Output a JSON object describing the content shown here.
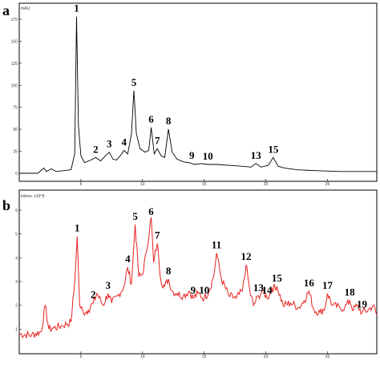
{
  "chart_data": [
    {
      "type": "line",
      "panel": "a",
      "color": "#000000",
      "y_unit": "mAU",
      "xlim": [
        0,
        29
      ],
      "ylim": [
        0,
        175
      ],
      "xticks": [
        "5",
        "10",
        "15",
        "20",
        "25"
      ],
      "yticks": [
        "0",
        "25",
        "50",
        "75",
        "100",
        "125",
        "150",
        "175"
      ],
      "series": [
        {
          "x": [
            0,
            1.5,
            2.0,
            2.2,
            2.6,
            3.0,
            3.6,
            4.2,
            4.5,
            4.65,
            4.8,
            5.0,
            5.3,
            5.8,
            6.2,
            6.6,
            7.0,
            7.3,
            7.6,
            7.9,
            8.2,
            8.5,
            8.8,
            9.1,
            9.3,
            9.5,
            9.8,
            10.2,
            10.5,
            10.7,
            10.95,
            11.2,
            11.5,
            11.8,
            12.1,
            12.4,
            12.8,
            13.3,
            13.8,
            14.2,
            14.8,
            15.3,
            16.0,
            17.0,
            18.0,
            18.8,
            19.2,
            19.6,
            20.2,
            20.6,
            21.0,
            21.5,
            22.5,
            24.0,
            26.0,
            29.0
          ],
          "y": [
            0,
            0,
            6,
            2,
            5,
            2,
            3,
            4,
            22,
            178,
            55,
            20,
            12,
            15,
            18,
            14,
            20,
            24,
            16,
            15,
            20,
            26,
            22,
            45,
            94,
            45,
            28,
            24,
            26,
            52,
            22,
            28,
            20,
            18,
            50,
            24,
            16,
            13,
            12,
            10,
            11,
            10,
            10,
            9,
            8,
            7,
            11,
            7,
            9,
            18,
            8,
            6,
            4,
            3,
            2,
            2
          ]
        }
      ],
      "peak_labels": [
        {
          "label": "1",
          "x": 4.65,
          "y": 178
        },
        {
          "label": "2",
          "x": 6.2,
          "y": 18
        },
        {
          "label": "3",
          "x": 7.3,
          "y": 24
        },
        {
          "label": "4",
          "x": 8.5,
          "y": 26
        },
        {
          "label": "5",
          "x": 9.3,
          "y": 94
        },
        {
          "label": "6",
          "x": 10.7,
          "y": 52
        },
        {
          "label": "7",
          "x": 11.2,
          "y": 28
        },
        {
          "label": "8",
          "x": 12.1,
          "y": 50
        },
        {
          "label": "9",
          "x": 14.0,
          "y": 11
        },
        {
          "label": "10",
          "x": 15.3,
          "y": 10
        },
        {
          "label": "13",
          "x": 19.2,
          "y": 11
        },
        {
          "label": "15",
          "x": 20.6,
          "y": 18
        }
      ]
    },
    {
      "type": "line",
      "panel": "b",
      "color": "#e8231f",
      "y_unit": "Intens. x10^6",
      "xlim": [
        0,
        29
      ],
      "ylim": [
        0,
        6
      ],
      "xticks": [
        "5",
        "10",
        "15",
        "20",
        "25",
        "30"
      ],
      "yticks": [
        "1",
        "2",
        "3",
        "4",
        "5",
        "6"
      ],
      "series": [
        {
          "x": [
            0,
            1.0,
            1.8,
            2.1,
            2.4,
            2.8,
            3.5,
            4.2,
            4.5,
            4.7,
            4.9,
            5.2,
            5.6,
            6.0,
            6.3,
            6.8,
            7.2,
            7.5,
            8.0,
            8.5,
            8.8,
            9.1,
            9.4,
            9.7,
            10.0,
            10.3,
            10.7,
            10.9,
            11.2,
            11.5,
            11.8,
            12.1,
            12.4,
            12.8,
            13.3,
            13.8,
            14.1,
            14.5,
            15.0,
            15.4,
            15.8,
            16.0,
            16.4,
            17.0,
            17.6,
            18.1,
            18.4,
            18.7,
            19.0,
            19.4,
            19.8,
            20.1,
            20.5,
            20.9,
            21.4,
            22.0,
            22.7,
            23.1,
            23.5,
            23.9,
            24.4,
            24.8,
            25.0,
            25.4,
            26.0,
            26.4,
            26.8,
            27.1,
            27.4,
            27.8,
            28.3,
            28.7,
            29.0
          ],
          "y": [
            0.8,
            0.75,
            0.9,
            2.0,
            1.0,
            1.05,
            1.15,
            1.3,
            3.0,
            4.9,
            2.0,
            1.7,
            1.8,
            2.1,
            2.5,
            2.0,
            2.5,
            2.1,
            2.4,
            2.8,
            3.6,
            2.9,
            5.4,
            3.2,
            3.3,
            4.2,
            5.7,
            3.8,
            4.6,
            3.0,
            2.8,
            3.1,
            2.6,
            2.5,
            2.4,
            2.6,
            2.3,
            2.5,
            2.3,
            2.6,
            3.3,
            4.2,
            3.1,
            2.4,
            2.3,
            2.6,
            3.7,
            2.6,
            2.0,
            2.4,
            2.6,
            2.3,
            2.7,
            2.8,
            2.0,
            2.1,
            1.9,
            2.2,
            2.6,
            1.8,
            1.7,
            1.9,
            2.5,
            2.0,
            1.9,
            1.9,
            2.2,
            1.8,
            2.0,
            1.7,
            1.8,
            2.0,
            1.6
          ]
        }
      ],
      "peak_labels": [
        {
          "label": "1",
          "x": 4.7,
          "y": 4.9
        },
        {
          "label": "2",
          "x": 6.0,
          "y": 2.1
        },
        {
          "label": "3",
          "x": 7.2,
          "y": 2.5
        },
        {
          "label": "4",
          "x": 8.8,
          "y": 3.6
        },
        {
          "label": "5",
          "x": 9.4,
          "y": 5.4
        },
        {
          "label": "6",
          "x": 10.7,
          "y": 5.7
        },
        {
          "label": "7",
          "x": 11.2,
          "y": 4.6
        },
        {
          "label": "8",
          "x": 12.1,
          "y": 3.1
        },
        {
          "label": "9",
          "x": 14.1,
          "y": 2.3
        },
        {
          "label": "10",
          "x": 15.0,
          "y": 2.3
        },
        {
          "label": "11",
          "x": 16.0,
          "y": 4.2
        },
        {
          "label": "12",
          "x": 18.4,
          "y": 3.7
        },
        {
          "label": "13",
          "x": 19.4,
          "y": 2.4
        },
        {
          "label": "14",
          "x": 20.1,
          "y": 2.3
        },
        {
          "label": "15",
          "x": 20.9,
          "y": 2.8
        },
        {
          "label": "16",
          "x": 23.5,
          "y": 2.6
        },
        {
          "label": "17",
          "x": 25.0,
          "y": 2.5
        },
        {
          "label": "18",
          "x": 26.8,
          "y": 2.2
        },
        {
          "label": "19",
          "x": 27.8,
          "y": 1.7
        }
      ]
    }
  ]
}
